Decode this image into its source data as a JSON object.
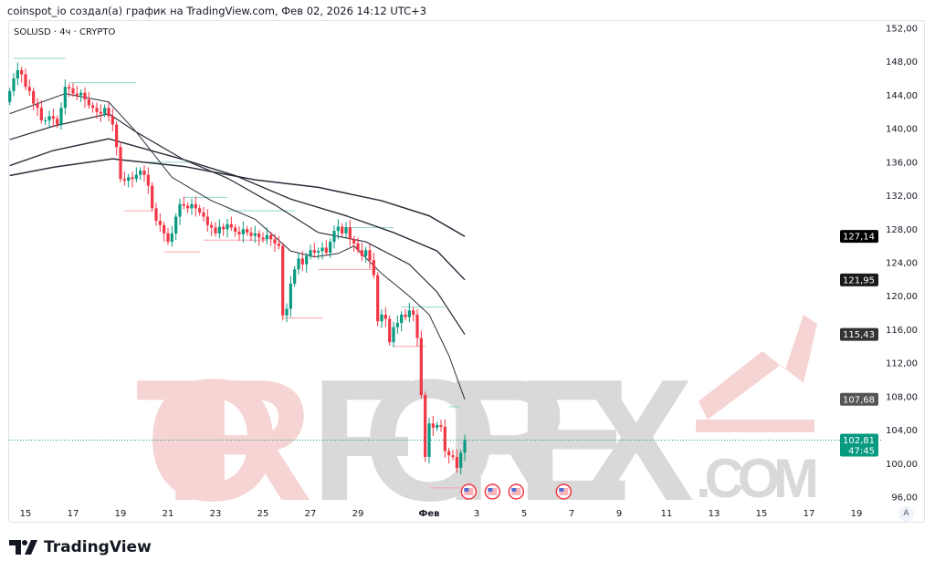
{
  "caption": "coinspot_io создал(а) график на TradingView.com, Фев 02, 2026 14:12 UTC+3",
  "brand": "TradingView",
  "watermark": {
    "part1": "TOR",
    "part2": "FOREX",
    "part3": ".COM",
    "color1": "#f6d4d4",
    "color2": "#d9d9d9"
  },
  "auto_button": "A",
  "colors": {
    "up": "#089981",
    "down": "#f23645",
    "ma": "#2a2e39"
  },
  "chart_data": {
    "type": "candlestick",
    "symbol_label": "SOLUSD · 4ч · CRYPTO",
    "interval_hours": 4,
    "first_candle": "2026-01-14T08:00",
    "close": [
      144.5,
      146,
      147,
      146.5,
      145,
      144.5,
      143,
      142.5,
      141,
      141,
      141.5,
      141.2,
      140.5,
      142.5,
      145,
      144.8,
      144.2,
      144,
      144.3,
      143.5,
      142.8,
      142.5,
      142,
      141.8,
      142.5,
      141.5,
      140.5,
      137.8,
      134,
      133.8,
      134.2,
      134,
      134.5,
      135,
      134.5,
      133.2,
      130.5,
      129,
      128.5,
      127.5,
      126.5,
      127.5,
      129.5,
      131,
      130.8,
      130.5,
      131,
      130.5,
      130,
      129.5,
      128.5,
      128.2,
      127.5,
      128.3,
      128,
      128.6,
      128.2,
      127.7,
      127.4,
      128,
      127.6,
      127.2,
      127.5,
      127,
      126.8,
      127.3,
      126.8,
      126.3,
      126,
      117.7,
      118.5,
      121.5,
      123.2,
      124.5,
      123.8,
      124.8,
      125.5,
      125.2,
      125.4,
      125.8,
      125.2,
      126.5,
      127.8,
      128.3,
      127.5,
      128.2,
      126.8,
      126.3,
      125.5,
      124.8,
      125.5,
      124.3,
      122.5,
      117,
      117.8,
      117.3,
      114.5,
      116.3,
      116.8,
      117.8,
      117.5,
      118.3,
      117.8,
      115,
      108.2,
      100.8,
      104.8,
      104.3,
      104.6,
      104.4,
      101.5,
      101,
      100.8,
      99.5,
      101.3,
      102.81
    ],
    "first_open": 143.2,
    "moving_averages": [
      {
        "points": [
          [
            "2026-01-14T08:00",
            141.8
          ],
          [
            "2026-01-16T16:00",
            144.2
          ],
          [
            "2026-01-18T12:00",
            143.2
          ],
          [
            "2026-01-19T16:00",
            139.6
          ],
          [
            "2026-01-21T04:00",
            134.2
          ],
          [
            "2026-01-22T20:00",
            131.4
          ],
          [
            "2026-01-24T16:00",
            129.2
          ],
          [
            "2026-01-26T04:00",
            125.4
          ],
          [
            "2026-01-27T04:00",
            124.7
          ],
          [
            "2026-01-28T04:00",
            125.1
          ],
          [
            "2026-01-28T20:00",
            126
          ],
          [
            "2026-01-30T00:00",
            122.7
          ],
          [
            "2026-01-31T04:00",
            120
          ],
          [
            "2026-02-01T00:00",
            117.8
          ],
          [
            "2026-02-01T20:00",
            112.9
          ],
          [
            "2026-02-02T12:00",
            107.68
          ]
        ],
        "last": "107,68",
        "label_color": "#555555",
        "width": 1
      },
      {
        "points": [
          [
            "2026-01-14T08:00",
            138.7
          ],
          [
            "2026-01-16T04:00",
            140.3
          ],
          [
            "2026-01-18T12:00",
            141.8
          ],
          [
            "2026-01-19T16:00",
            139.6
          ],
          [
            "2026-01-21T16:00",
            136.3
          ],
          [
            "2026-01-23T12:00",
            134.1
          ],
          [
            "2026-01-25T12:00",
            130.9
          ],
          [
            "2026-01-27T08:00",
            127.6
          ],
          [
            "2026-01-29T08:00",
            126.5
          ],
          [
            "2026-01-31T04:00",
            123.8
          ],
          [
            "2026-02-01T08:00",
            120.5
          ],
          [
            "2026-02-02T12:00",
            115.43
          ]
        ],
        "last": "115,43",
        "label_color": "#333333",
        "width": 1.2
      },
      {
        "points": [
          [
            "2026-01-14T08:00",
            135.6
          ],
          [
            "2026-01-16T04:00",
            137.4
          ],
          [
            "2026-01-18T12:00",
            138.8
          ],
          [
            "2026-01-21T16:00",
            136.3
          ],
          [
            "2026-01-23T20:00",
            134.4
          ],
          [
            "2026-01-26T04:00",
            131.6
          ],
          [
            "2026-01-28T12:00",
            129.6
          ],
          [
            "2026-01-30T12:00",
            127.6
          ],
          [
            "2026-02-01T08:00",
            125.4
          ],
          [
            "2026-02-02T12:00",
            121.95
          ]
        ],
        "last": "121,95",
        "label_color": "#1a1a1a",
        "width": 1.4
      },
      {
        "points": [
          [
            "2026-01-14T08:00",
            134.4
          ],
          [
            "2026-01-16T04:00",
            135.4
          ],
          [
            "2026-01-18T16:00",
            136.4
          ],
          [
            "2026-01-21T16:00",
            135.5
          ],
          [
            "2026-01-24T16:00",
            133.9
          ],
          [
            "2026-01-27T08:00",
            133
          ],
          [
            "2026-01-30T00:00",
            131.4
          ],
          [
            "2026-02-01T00:00",
            129.6
          ],
          [
            "2026-02-02T12:00",
            127.14
          ]
        ],
        "last": "127,14",
        "label_color": "#000000",
        "width": 1.5
      }
    ],
    "levels": [
      {
        "from": "2026-01-14T12:00",
        "to": "2026-01-16T16:00",
        "price": 148.4,
        "kind": "high"
      },
      {
        "from": "2026-01-16T20:00",
        "to": "2026-01-19T16:00",
        "price": 145.5,
        "kind": "high"
      },
      {
        "from": "2026-01-19T04:00",
        "to": "2026-01-20T08:00",
        "price": 130.2,
        "kind": "low"
      },
      {
        "from": "2026-01-20T04:00",
        "to": "2026-01-21T20:00",
        "price": 136.0,
        "kind": "high"
      },
      {
        "from": "2026-01-21T16:00",
        "to": "2026-01-23T12:00",
        "price": 131.8,
        "kind": "high"
      },
      {
        "from": "2026-01-20T20:00",
        "to": "2026-01-22T08:00",
        "price": 125.3,
        "kind": "low"
      },
      {
        "from": "2026-01-23T12:00",
        "to": "2026-01-26T08:00",
        "price": 130.2,
        "kind": "high"
      },
      {
        "from": "2026-01-22T12:00",
        "to": "2026-01-25T04:00",
        "price": 126.7,
        "kind": "low"
      },
      {
        "from": "2026-01-25T20:00",
        "to": "2026-01-27T12:00",
        "price": 117.4,
        "kind": "low"
      },
      {
        "from": "2026-01-28T08:00",
        "to": "2026-01-30T12:00",
        "price": 128.2,
        "kind": "high"
      },
      {
        "from": "2026-01-27T08:00",
        "to": "2026-01-29T20:00",
        "price": 123.2,
        "kind": "low"
      },
      {
        "from": "2026-01-30T20:00",
        "to": "2026-02-01T16:00",
        "price": 118.7,
        "kind": "high"
      },
      {
        "from": "2026-01-30T12:00",
        "to": "2026-01-31T20:00",
        "price": 114.0,
        "kind": "low"
      },
      {
        "from": "2026-02-01T20:00",
        "to": "2026-02-02T08:00",
        "price": 106.8,
        "kind": "high"
      },
      {
        "from": "2026-02-01T00:00",
        "to": "2026-02-02T08:00",
        "price": 97.1,
        "kind": "low"
      }
    ],
    "y_ticks": [
      "152,00",
      "148,00",
      "144,00",
      "140,00",
      "136,00",
      "132,00",
      "128,00",
      "124,00",
      "120,00",
      "116,00",
      "112,00",
      "108,00",
      "104,00",
      "100,00",
      "96,00"
    ],
    "ylim": [
      96,
      152
    ],
    "x_ticks": [
      [
        "15",
        "2026-01-15"
      ],
      [
        "17",
        "2026-01-17"
      ],
      [
        "19",
        "2026-01-19"
      ],
      [
        "21",
        "2026-01-21"
      ],
      [
        "23",
        "2026-01-23"
      ],
      [
        "25",
        "2026-01-25"
      ],
      [
        "27",
        "2026-01-27"
      ],
      [
        "29",
        "2026-01-29"
      ],
      [
        "Фев",
        "2026-02-01"
      ],
      [
        "3",
        "2026-02-03"
      ],
      [
        "5",
        "2026-02-05"
      ],
      [
        "7",
        "2026-02-07"
      ],
      [
        "9",
        "2026-02-09"
      ],
      [
        "11",
        "2026-02-11"
      ],
      [
        "13",
        "2026-02-13"
      ],
      [
        "15",
        "2026-02-15"
      ],
      [
        "17",
        "2026-02-17"
      ],
      [
        "19",
        "2026-02-19"
      ]
    ],
    "last_price": {
      "value": 102.81,
      "label": "102,81",
      "countdown": "47:45",
      "color": "#089981"
    },
    "events": [
      "2026-02-02T16:00",
      "2026-02-03T16:00",
      "2026-02-04T16:00",
      "2026-02-06T16:00"
    ]
  }
}
